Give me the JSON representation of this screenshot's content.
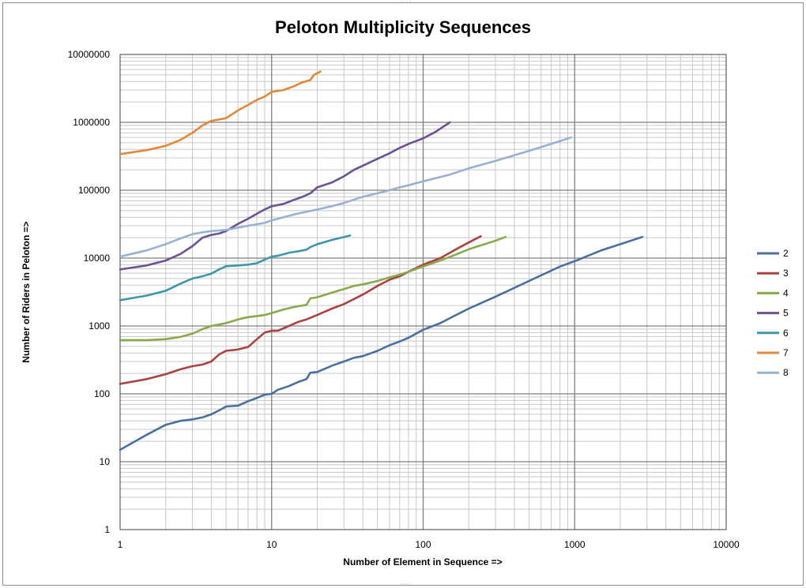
{
  "chart_data": {
    "type": "line",
    "title": "Peloton Multiplicity Sequences",
    "xlabel": "Number of Element in Sequence =>",
    "ylabel": "Number of  Riders in Peloton  =>",
    "x_scale": "log",
    "y_scale": "log",
    "xlim": [
      1,
      10000
    ],
    "ylim": [
      1,
      10000000
    ],
    "x_ticks": [
      "1",
      "10",
      "100",
      "1000",
      "10000"
    ],
    "y_ticks": [
      "1",
      "10",
      "100",
      "1000",
      "10000",
      "100000",
      "1000000",
      "10000000"
    ],
    "grid": "major and minor",
    "legend_position": "right",
    "series": [
      {
        "name": "2",
        "color": "#4a6f9c",
        "points": [
          [
            1,
            15
          ],
          [
            1.5,
            25
          ],
          [
            2,
            35
          ],
          [
            2.5,
            40
          ],
          [
            3,
            42
          ],
          [
            3.5,
            45
          ],
          [
            4,
            50
          ],
          [
            4.5,
            57
          ],
          [
            5,
            65
          ],
          [
            6,
            67
          ],
          [
            7,
            78
          ],
          [
            8,
            87
          ],
          [
            9,
            97
          ],
          [
            10,
            100
          ],
          [
            11,
            115
          ],
          [
            13,
            130
          ],
          [
            15,
            150
          ],
          [
            17,
            165
          ],
          [
            18,
            205
          ],
          [
            20,
            210
          ],
          [
            25,
            260
          ],
          [
            30,
            300
          ],
          [
            35,
            340
          ],
          [
            40,
            360
          ],
          [
            50,
            430
          ],
          [
            60,
            520
          ],
          [
            70,
            590
          ],
          [
            80,
            670
          ],
          [
            100,
            880
          ],
          [
            130,
            1100
          ],
          [
            160,
            1400
          ],
          [
            200,
            1800
          ],
          [
            300,
            2700
          ],
          [
            500,
            4600
          ],
          [
            800,
            7500
          ],
          [
            1000,
            9000
          ],
          [
            1500,
            13000
          ],
          [
            2000,
            16000
          ],
          [
            2800,
            20500
          ]
        ]
      },
      {
        "name": "3",
        "color": "#a84442",
        "points": [
          [
            1,
            140
          ],
          [
            1.5,
            165
          ],
          [
            2,
            195
          ],
          [
            2.5,
            230
          ],
          [
            3,
            255
          ],
          [
            3.5,
            270
          ],
          [
            4,
            300
          ],
          [
            4.5,
            380
          ],
          [
            5,
            430
          ],
          [
            6,
            450
          ],
          [
            7,
            490
          ],
          [
            8,
            640
          ],
          [
            9,
            800
          ],
          [
            10,
            850
          ],
          [
            11,
            850
          ],
          [
            13,
            1000
          ],
          [
            15,
            1150
          ],
          [
            17,
            1250
          ],
          [
            20,
            1450
          ],
          [
            25,
            1800
          ],
          [
            30,
            2100
          ],
          [
            35,
            2500
          ],
          [
            40,
            2900
          ],
          [
            50,
            3900
          ],
          [
            60,
            4800
          ],
          [
            70,
            5400
          ],
          [
            80,
            6300
          ],
          [
            100,
            8000
          ],
          [
            130,
            10000
          ],
          [
            160,
            13000
          ],
          [
            200,
            17000
          ],
          [
            240,
            21000
          ]
        ]
      },
      {
        "name": "4",
        "color": "#8aa94c",
        "points": [
          [
            1,
            620
          ],
          [
            1.5,
            620
          ],
          [
            2,
            640
          ],
          [
            2.5,
            690
          ],
          [
            3,
            770
          ],
          [
            3.5,
            900
          ],
          [
            4,
            1000
          ],
          [
            4.5,
            1050
          ],
          [
            5,
            1100
          ],
          [
            6,
            1250
          ],
          [
            7,
            1350
          ],
          [
            8,
            1400
          ],
          [
            9,
            1450
          ],
          [
            10,
            1550
          ],
          [
            12,
            1750
          ],
          [
            14,
            1900
          ],
          [
            17,
            2050
          ],
          [
            18,
            2550
          ],
          [
            20,
            2650
          ],
          [
            25,
            3100
          ],
          [
            30,
            3500
          ],
          [
            35,
            3900
          ],
          [
            40,
            4100
          ],
          [
            50,
            4600
          ],
          [
            60,
            5200
          ],
          [
            70,
            5700
          ],
          [
            80,
            6300
          ],
          [
            100,
            7500
          ],
          [
            130,
            9200
          ],
          [
            160,
            11000
          ],
          [
            200,
            13500
          ],
          [
            300,
            18000
          ],
          [
            350,
            20500
          ]
        ]
      },
      {
        "name": "5",
        "color": "#6c5193",
        "points": [
          [
            1,
            6800
          ],
          [
            1.5,
            7800
          ],
          [
            2,
            9200
          ],
          [
            2.5,
            11500
          ],
          [
            3,
            15000
          ],
          [
            3.5,
            20000
          ],
          [
            4,
            22000
          ],
          [
            4.5,
            23000
          ],
          [
            5,
            25000
          ],
          [
            6,
            32000
          ],
          [
            7,
            38000
          ],
          [
            8,
            45000
          ],
          [
            9,
            52000
          ],
          [
            10,
            58000
          ],
          [
            12,
            63000
          ],
          [
            14,
            72000
          ],
          [
            16,
            80000
          ],
          [
            18,
            90000
          ],
          [
            20,
            110000
          ],
          [
            25,
            130000
          ],
          [
            30,
            160000
          ],
          [
            35,
            200000
          ],
          [
            40,
            230000
          ],
          [
            50,
            290000
          ],
          [
            60,
            350000
          ],
          [
            70,
            420000
          ],
          [
            80,
            480000
          ],
          [
            100,
            580000
          ],
          [
            120,
            720000
          ],
          [
            150,
            1000000
          ]
        ]
      },
      {
        "name": "6",
        "color": "#3e96aa",
        "points": [
          [
            1,
            2400
          ],
          [
            1.5,
            2800
          ],
          [
            2,
            3300
          ],
          [
            2.5,
            4200
          ],
          [
            3,
            5000
          ],
          [
            3.5,
            5400
          ],
          [
            4,
            5900
          ],
          [
            4.5,
            6800
          ],
          [
            5,
            7600
          ],
          [
            6,
            7800
          ],
          [
            7,
            8000
          ],
          [
            8,
            8400
          ],
          [
            9,
            9500
          ],
          [
            10,
            10500
          ],
          [
            11,
            10800
          ],
          [
            13,
            12000
          ],
          [
            15,
            12600
          ],
          [
            17,
            13300
          ],
          [
            18,
            14500
          ],
          [
            20,
            16000
          ],
          [
            25,
            18500
          ],
          [
            33,
            21500
          ]
        ]
      },
      {
        "name": "7",
        "color": "#e0893a",
        "points": [
          [
            1,
            340000
          ],
          [
            1.5,
            390000
          ],
          [
            2,
            450000
          ],
          [
            2.5,
            550000
          ],
          [
            3,
            700000
          ],
          [
            3.5,
            900000
          ],
          [
            4,
            1050000
          ],
          [
            4.5,
            1100000
          ],
          [
            5,
            1150000
          ],
          [
            6,
            1500000
          ],
          [
            7,
            1800000
          ],
          [
            8,
            2150000
          ],
          [
            9,
            2400000
          ],
          [
            10,
            2800000
          ],
          [
            12,
            3000000
          ],
          [
            14,
            3400000
          ],
          [
            16,
            3900000
          ],
          [
            18,
            4200000
          ],
          [
            19,
            5000000
          ],
          [
            21,
            5600000
          ]
        ]
      },
      {
        "name": "8",
        "color": "#98b1d2",
        "points": [
          [
            1,
            10500
          ],
          [
            1.5,
            13000
          ],
          [
            2,
            16000
          ],
          [
            2.5,
            19500
          ],
          [
            3,
            22500
          ],
          [
            3.5,
            24000
          ],
          [
            4,
            25000
          ],
          [
            5,
            26000
          ],
          [
            6,
            28000
          ],
          [
            7,
            30000
          ],
          [
            8,
            31500
          ],
          [
            9,
            33000
          ],
          [
            10,
            36000
          ],
          [
            12,
            40000
          ],
          [
            14,
            44000
          ],
          [
            17,
            48000
          ],
          [
            20,
            52000
          ],
          [
            25,
            58000
          ],
          [
            30,
            65000
          ],
          [
            40,
            80000
          ],
          [
            50,
            90000
          ],
          [
            60,
            100000
          ],
          [
            70,
            110000
          ],
          [
            80,
            118000
          ],
          [
            100,
            135000
          ],
          [
            150,
            170000
          ],
          [
            200,
            210000
          ],
          [
            300,
            270000
          ],
          [
            500,
            380000
          ],
          [
            700,
            480000
          ],
          [
            950,
            600000
          ]
        ]
      }
    ]
  }
}
